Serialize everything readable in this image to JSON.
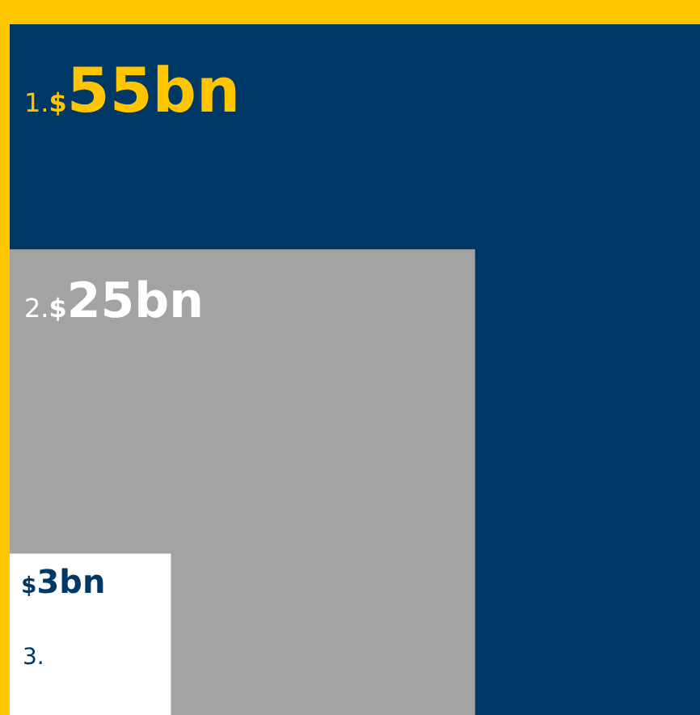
{
  "chart_data": {
    "type": "other",
    "categories": [
      "1.",
      "2.",
      "3."
    ],
    "values": [
      55,
      25,
      3
    ],
    "value_labels": [
      "$55bn",
      "$25bn",
      "$3bn"
    ],
    "colors": [
      "#003865",
      "#a3a3a1",
      "#ffffff"
    ]
  }
}
